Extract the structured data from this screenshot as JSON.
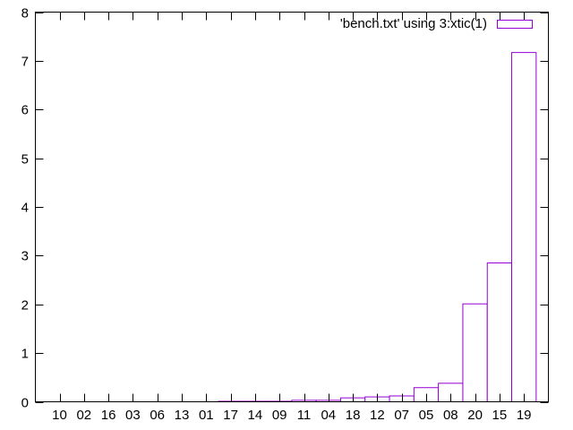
{
  "chart_data": {
    "type": "bar",
    "categories": [
      "10",
      "02",
      "16",
      "03",
      "06",
      "13",
      "01",
      "17",
      "14",
      "09",
      "11",
      "04",
      "18",
      "12",
      "07",
      "05",
      "08",
      "20",
      "15",
      "19"
    ],
    "series": [
      {
        "name": "'bench.txt' using 3:xtic(1)",
        "values": [
          0.0,
          0.0,
          0.0,
          0.0,
          0.0,
          0.0,
          0.0,
          0.01,
          0.01,
          0.01,
          0.03,
          0.03,
          0.08,
          0.1,
          0.12,
          0.29,
          0.38,
          2.01,
          2.85,
          7.17
        ]
      }
    ],
    "y_ticks": [
      "0",
      "1",
      "2",
      "3",
      "4",
      "5",
      "6",
      "7",
      "8"
    ],
    "ylim": [
      0,
      8
    ],
    "legend_position": "top-right",
    "grid": false,
    "colors": {
      "bar_stroke": "#9400d3",
      "bar_fill": "#ffffff",
      "axis": "#000000"
    }
  }
}
